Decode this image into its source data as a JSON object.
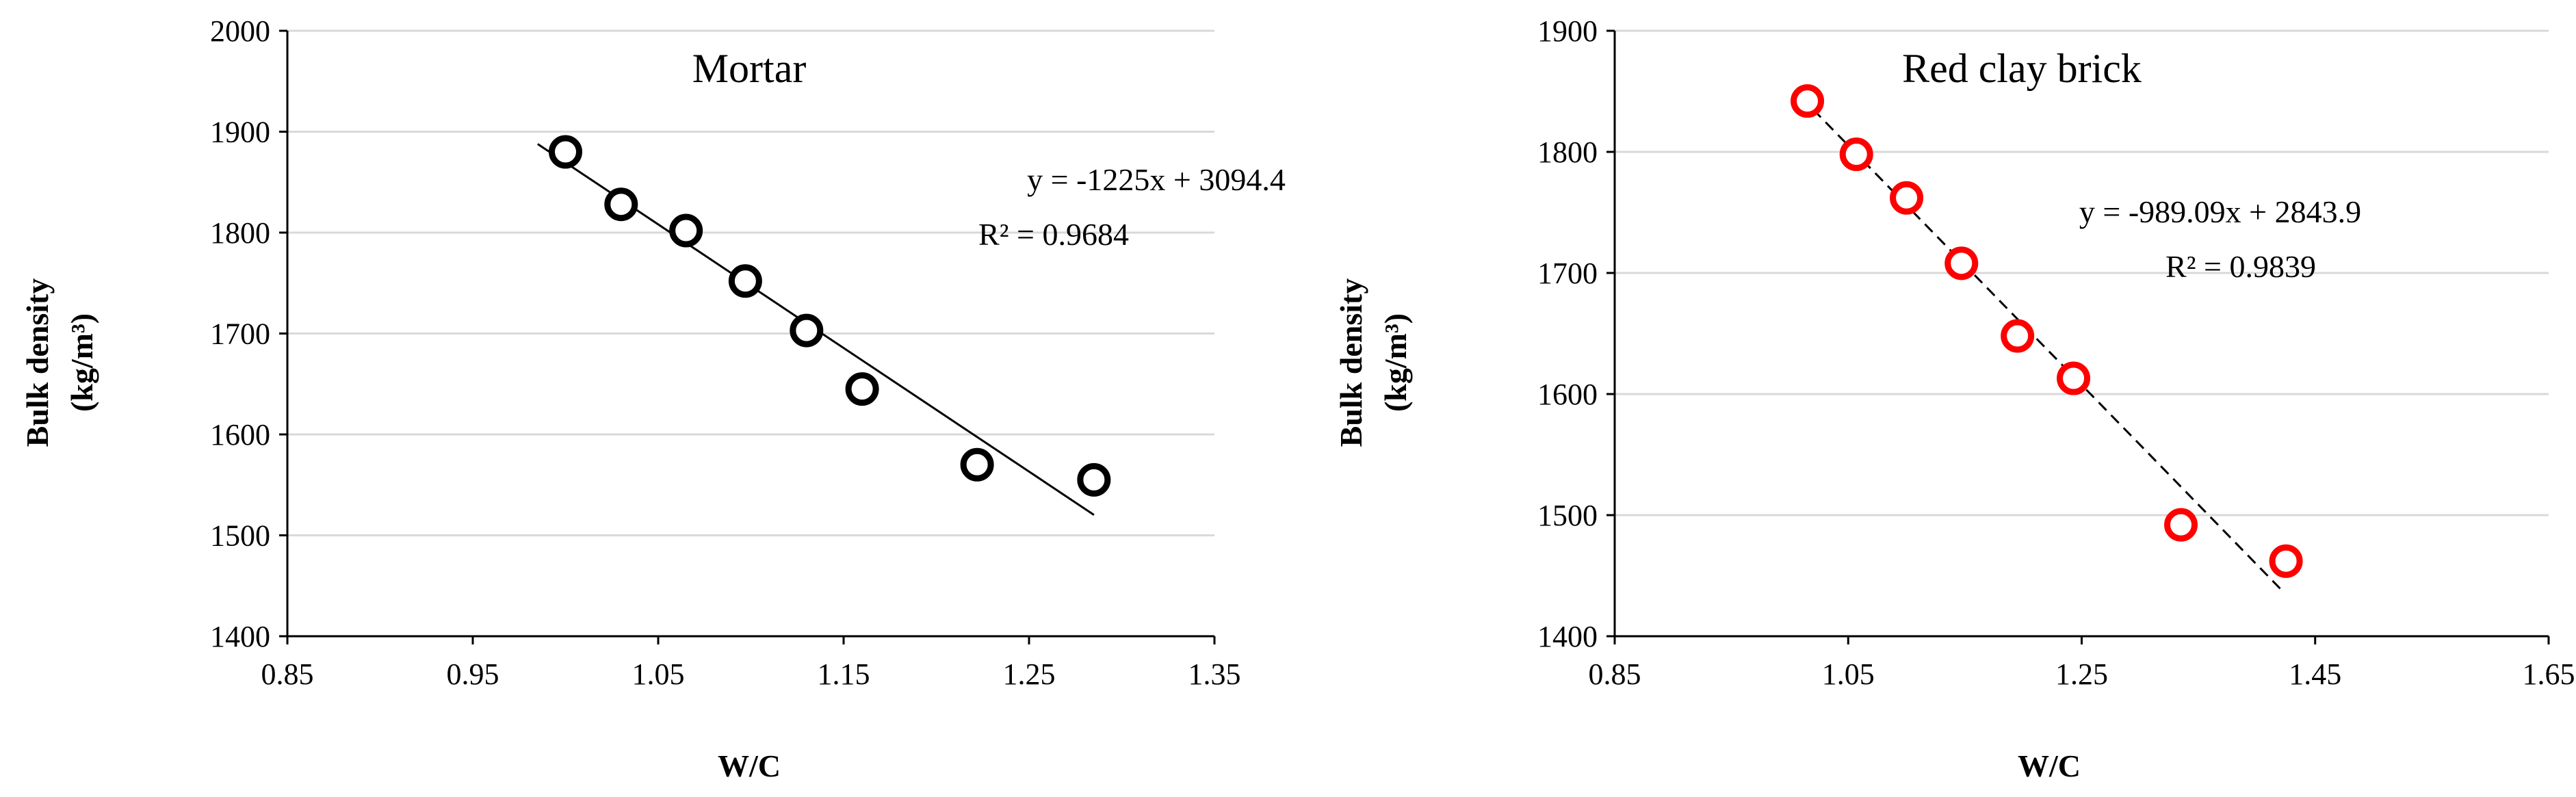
{
  "chart_data": [
    {
      "type": "scatter",
      "title": "Mortar",
      "xlabel": "W/C",
      "ylabel": [
        "Bulk density",
        "(kg/m³)"
      ],
      "xlim": [
        0.85,
        1.35
      ],
      "ylim": [
        1400,
        2000
      ],
      "xticks": [
        "0.85",
        "0.95",
        "1.05",
        "1.15",
        "1.25",
        "1.35"
      ],
      "yticks": [
        "1400",
        "1500",
        "1600",
        "1700",
        "1800",
        "1900",
        "2000"
      ],
      "grid": "horizontal",
      "marker_color": "#000000",
      "series": [
        {
          "x": [
            1.0,
            1.03,
            1.065,
            1.097,
            1.13,
            1.16,
            1.222,
            1.285
          ],
          "y": [
            1880,
            1828,
            1802,
            1752,
            1703,
            1645,
            1570,
            1555
          ]
        }
      ],
      "trendline": {
        "style": "solid",
        "slope": -1225,
        "intercept": 3094.4,
        "x_range": [
          0.985,
          1.285
        ]
      },
      "equation": "y = -1225x + 3094.4",
      "r_squared": "R² = 0.9684"
    },
    {
      "type": "scatter",
      "title": "Red clay brick",
      "xlabel": "W/C",
      "ylabel": [
        "Bulk density",
        "(kg/m³)"
      ],
      "xlim": [
        0.85,
        1.65
      ],
      "ylim": [
        1400,
        1900
      ],
      "xticks": [
        "0.85",
        "1.05",
        "1.25",
        "1.45",
        "1.65"
      ],
      "yticks": [
        "1400",
        "1500",
        "1600",
        "1700",
        "1800",
        "1900"
      ],
      "grid": "horizontal",
      "marker_color": "#ff0000",
      "series": [
        {
          "x": [
            1.015,
            1.057,
            1.1,
            1.147,
            1.195,
            1.243,
            1.335,
            1.425
          ],
          "y": [
            1842,
            1798,
            1762,
            1708,
            1648,
            1613,
            1492,
            1462
          ]
        }
      ],
      "trendline": {
        "style": "dashed",
        "slope": -989.09,
        "intercept": 2843.9,
        "x_range": [
          1.02,
          1.42
        ]
      },
      "equation": "y = -989.09x + 2843.9",
      "r_squared": "R² = 0.9839"
    }
  ]
}
